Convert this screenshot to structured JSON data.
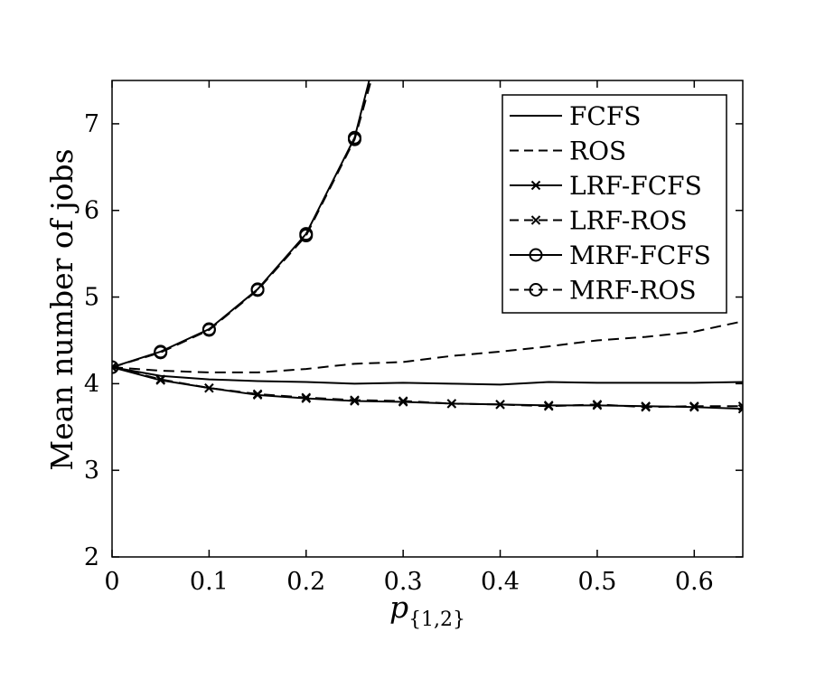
{
  "chart_data": {
    "type": "line",
    "xlabel": "p",
    "xlabel_sub": "{1,2}",
    "ylabel": "Mean number of jobs",
    "xlim": [
      0,
      0.65
    ],
    "ylim": [
      2,
      7.5
    ],
    "xticks": [
      0,
      0.1,
      0.2,
      0.3,
      0.4,
      0.5,
      0.6
    ],
    "xtick_labels": [
      "0",
      "0.1",
      "0.2",
      "0.3",
      "0.4",
      "0.5",
      "0.6"
    ],
    "yticks": [
      2,
      3,
      4,
      5,
      6,
      7
    ],
    "ytick_labels": [
      "2",
      "3",
      "4",
      "5",
      "6",
      "7"
    ],
    "grid": false,
    "legend_position": "top-right",
    "series": [
      {
        "name": "FCFS",
        "dash": "solid",
        "marker": "none",
        "x": [
          0,
          0.05,
          0.1,
          0.15,
          0.2,
          0.25,
          0.3,
          0.35,
          0.4,
          0.45,
          0.5,
          0.55,
          0.6,
          0.65
        ],
        "y": [
          4.19,
          4.09,
          4.05,
          4.03,
          4.02,
          4.0,
          4.01,
          4.0,
          3.99,
          4.02,
          4.01,
          4.01,
          4.01,
          4.02
        ]
      },
      {
        "name": "ROS",
        "dash": "dashed",
        "marker": "none",
        "x": [
          0,
          0.05,
          0.1,
          0.15,
          0.2,
          0.25,
          0.3,
          0.35,
          0.4,
          0.45,
          0.5,
          0.55,
          0.6,
          0.65
        ],
        "y": [
          4.19,
          4.15,
          4.13,
          4.13,
          4.17,
          4.23,
          4.25,
          4.32,
          4.37,
          4.43,
          4.5,
          4.54,
          4.6,
          4.72
        ]
      },
      {
        "name": "LRF-FCFS",
        "dash": "solid",
        "marker": "x",
        "x": [
          0,
          0.05,
          0.1,
          0.15,
          0.2,
          0.25,
          0.3,
          0.35,
          0.4,
          0.45,
          0.5,
          0.55,
          0.6,
          0.65
        ],
        "y": [
          4.19,
          4.04,
          3.95,
          3.87,
          3.83,
          3.8,
          3.79,
          3.77,
          3.76,
          3.75,
          3.75,
          3.74,
          3.73,
          3.71
        ]
      },
      {
        "name": "LRF-ROS",
        "dash": "dashed",
        "marker": "x",
        "x": [
          0,
          0.05,
          0.1,
          0.15,
          0.2,
          0.25,
          0.3,
          0.35,
          0.4,
          0.45,
          0.5,
          0.55,
          0.6,
          0.65
        ],
        "y": [
          4.19,
          4.05,
          3.95,
          3.88,
          3.84,
          3.81,
          3.8,
          3.77,
          3.76,
          3.74,
          3.76,
          3.73,
          3.74,
          3.74
        ]
      },
      {
        "name": "MRF-FCFS",
        "dash": "solid",
        "marker": "o",
        "x": [
          0,
          0.05,
          0.1,
          0.15,
          0.2,
          0.25,
          0.265
        ],
        "y": [
          4.19,
          4.37,
          4.63,
          5.09,
          5.73,
          6.84,
          7.5
        ]
      },
      {
        "name": "MRF-ROS",
        "dash": "dashed",
        "marker": "o",
        "x": [
          0,
          0.05,
          0.1,
          0.15,
          0.2,
          0.25,
          0.267
        ],
        "y": [
          4.19,
          4.36,
          4.62,
          5.08,
          5.71,
          6.82,
          7.5
        ]
      }
    ]
  }
}
